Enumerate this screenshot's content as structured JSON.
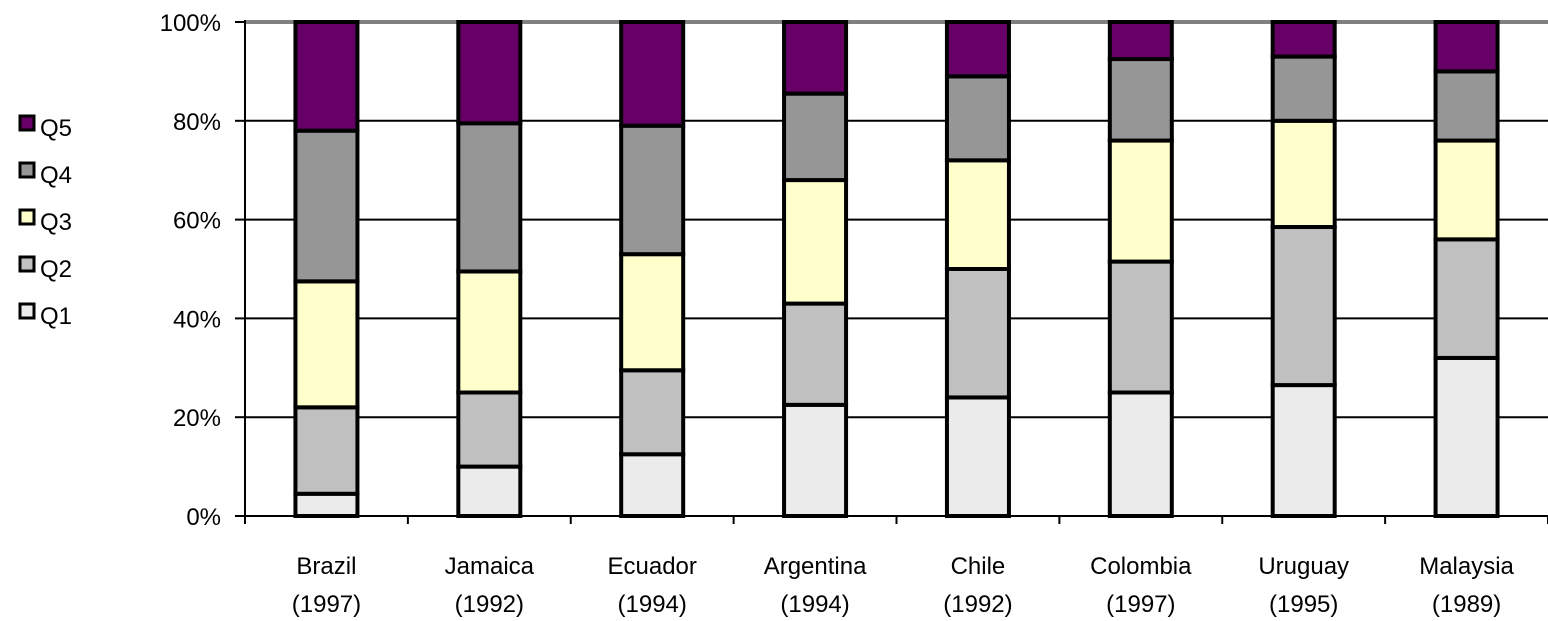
{
  "chart_data": {
    "type": "bar",
    "stacked": true,
    "percent": true,
    "categories": [
      [
        "Brazil",
        "(1997)"
      ],
      [
        "Jamaica",
        "(1992)"
      ],
      [
        "Ecuador",
        "(1994)"
      ],
      [
        "Argentina",
        "(1994)"
      ],
      [
        "Chile",
        "(1992)"
      ],
      [
        "Colombia",
        "(1997)"
      ],
      [
        "Uruguay",
        "(1995)"
      ],
      [
        "Malaysia",
        "(1989)"
      ]
    ],
    "series": [
      {
        "name": "Q1",
        "color": "#ebebeb",
        "values": [
          4.5,
          10,
          12.5,
          22.5,
          24,
          25,
          26.5,
          32
        ]
      },
      {
        "name": "Q2",
        "color": "#c0c0c0",
        "values": [
          17.5,
          15,
          17,
          20.5,
          26,
          26.5,
          32,
          24
        ]
      },
      {
        "name": "Q3",
        "color": "#ffffcc",
        "values": [
          25.5,
          24.5,
          23.5,
          25,
          22,
          24.5,
          21.5,
          20
        ]
      },
      {
        "name": "Q4",
        "color": "#969696",
        "values": [
          30.5,
          30,
          26,
          17.5,
          17,
          16.5,
          13,
          14
        ]
      },
      {
        "name": "Q5",
        "color": "#660066",
        "values": [
          22,
          20.5,
          21,
          14.5,
          11,
          7.5,
          7,
          10
        ]
      }
    ],
    "y_ticks": [
      "0%",
      "20%",
      "40%",
      "60%",
      "80%",
      "100%"
    ],
    "ylim": [
      0,
      100
    ],
    "grid": true,
    "legend": {
      "placement": "left",
      "order": [
        "Q5",
        "Q4",
        "Q3",
        "Q2",
        "Q1"
      ]
    }
  }
}
